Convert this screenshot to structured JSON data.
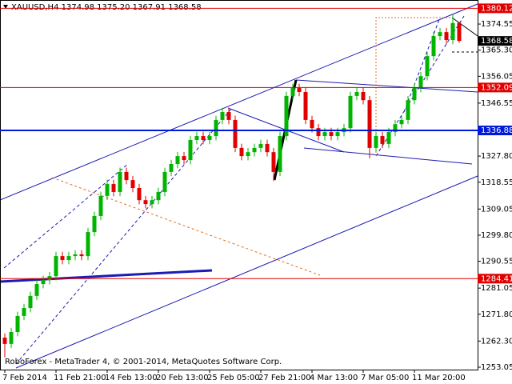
{
  "chart_data": {
    "type": "candlestick",
    "title": "XAUUSD,H4  1374.98 1375.20 1367.91 1368.58",
    "watermark": "RoboForex - MetaTrader 4, © 2001-2014, MetaQuotes Software Corp.",
    "categories": [
      "7 Feb 2014",
      null,
      null,
      null,
      null,
      null,
      null,
      null,
      "11 Feb 21:00",
      null,
      null,
      null,
      null,
      null,
      null,
      null,
      "14 Feb 13:00",
      null,
      null,
      null,
      null,
      null,
      null,
      null,
      "20 Feb 13:00",
      null,
      null,
      null,
      null,
      null,
      null,
      null,
      "25 Feb 05:00",
      null,
      null,
      null,
      null,
      null,
      null,
      null,
      "27 Feb 21:00",
      null,
      null,
      null,
      null,
      null,
      null,
      null,
      "4 Mar 13:00",
      null,
      null,
      null,
      null,
      null,
      null,
      null,
      "7 Mar 05:00",
      null,
      null,
      null,
      null,
      null,
      null,
      null,
      "11 Mar 20:00",
      null,
      null,
      null,
      null,
      null,
      null,
      null
    ],
    "open": [
      1263.5,
      1261.3,
      1265.5,
      1271.2,
      1274.0,
      1278.3,
      1282.5,
      1283.9,
      1285.3,
      1292.4,
      1291.0,
      1292.4,
      1293.0,
      1292.4,
      1300.9,
      1306.6,
      1313.7,
      1317.9,
      1315.1,
      1322.2,
      1319.3,
      1316.5,
      1312.2,
      1310.8,
      1312.2,
      1315.1,
      1322.2,
      1325.0,
      1327.8,
      1326.4,
      1333.5,
      1334.9,
      1333.5,
      1334.9,
      1340.6,
      1343.4,
      1340.6,
      1330.7,
      1327.8,
      1329.2,
      1330.7,
      1332.1,
      1329.2,
      1322.2,
      1334.9,
      1349.1,
      1351.9,
      1350.5,
      1340.6,
      1337.7,
      1334.9,
      1336.3,
      1334.9,
      1336.3,
      1337.7,
      1349.1,
      1350.5,
      1347.6,
      1330.7,
      1334.9,
      1332.1,
      1336.3,
      1339.1,
      1340.6,
      1347.6,
      1351.9,
      1356.1,
      1363.2,
      1370.3,
      1371.7,
      1368.9,
      1374.98
    ],
    "high": [
      1265.0,
      1267.0,
      1272.7,
      1275.5,
      1279.8,
      1284.0,
      1285.4,
      1286.8,
      1293.9,
      1293.9,
      1293.9,
      1294.5,
      1294.5,
      1302.4,
      1308.1,
      1315.2,
      1319.4,
      1319.4,
      1323.7,
      1323.7,
      1320.8,
      1318.0,
      1313.7,
      1313.7,
      1316.6,
      1323.7,
      1326.5,
      1329.3,
      1329.3,
      1335.0,
      1336.4,
      1336.4,
      1336.4,
      1342.1,
      1344.9,
      1344.9,
      1342.1,
      1332.2,
      1330.7,
      1332.2,
      1333.6,
      1333.6,
      1330.7,
      1336.4,
      1350.6,
      1353.4,
      1353.4,
      1352.0,
      1342.1,
      1339.2,
      1337.8,
      1337.8,
      1337.8,
      1339.2,
      1350.6,
      1352.0,
      1352.0,
      1349.1,
      1336.4,
      1336.4,
      1337.8,
      1340.6,
      1342.1,
      1349.1,
      1353.4,
      1357.6,
      1364.7,
      1371.8,
      1373.2,
      1373.2,
      1378.0,
      1375.2
    ],
    "low": [
      1256.5,
      1259.8,
      1264.0,
      1269.7,
      1272.5,
      1276.8,
      1281.0,
      1282.4,
      1283.8,
      1289.5,
      1289.5,
      1290.9,
      1290.9,
      1290.9,
      1299.4,
      1305.1,
      1312.2,
      1313.6,
      1313.6,
      1317.8,
      1315.0,
      1310.7,
      1309.3,
      1309.3,
      1310.7,
      1313.6,
      1320.7,
      1323.5,
      1324.9,
      1324.9,
      1332.0,
      1332.0,
      1332.0,
      1333.4,
      1339.1,
      1339.1,
      1329.2,
      1326.3,
      1326.3,
      1327.7,
      1329.2,
      1327.7,
      1319.0,
      1320.7,
      1333.4,
      1347.6,
      1349.0,
      1339.1,
      1336.2,
      1333.4,
      1333.4,
      1333.4,
      1333.4,
      1334.8,
      1336.2,
      1347.6,
      1346.1,
      1327.0,
      1329.2,
      1330.6,
      1330.6,
      1334.8,
      1337.6,
      1339.1,
      1346.1,
      1350.4,
      1354.6,
      1361.7,
      1368.8,
      1367.4,
      1367.4,
      1367.91
    ],
    "close": [
      1261.3,
      1265.5,
      1271.2,
      1274.0,
      1278.3,
      1282.5,
      1283.9,
      1285.3,
      1292.4,
      1291.0,
      1292.4,
      1293.0,
      1292.4,
      1300.9,
      1306.6,
      1313.7,
      1317.9,
      1315.1,
      1322.2,
      1319.3,
      1316.5,
      1312.2,
      1310.8,
      1312.2,
      1315.1,
      1322.2,
      1325.0,
      1327.8,
      1326.4,
      1333.5,
      1334.9,
      1333.5,
      1334.9,
      1340.6,
      1343.4,
      1340.6,
      1330.7,
      1327.8,
      1329.2,
      1330.7,
      1332.1,
      1329.2,
      1322.2,
      1334.9,
      1349.1,
      1351.9,
      1350.5,
      1340.6,
      1337.7,
      1334.9,
      1336.3,
      1334.9,
      1336.3,
      1337.7,
      1349.1,
      1350.5,
      1347.6,
      1330.7,
      1334.9,
      1332.1,
      1336.3,
      1339.1,
      1340.6,
      1347.6,
      1351.9,
      1356.1,
      1363.2,
      1370.3,
      1371.7,
      1368.9,
      1374.9,
      1368.58
    ],
    "bull_color": "#00b400",
    "bear_color": "#e00000",
    "ylim": [
      1252.2,
      1382.5
    ],
    "yticks": [
      1374.55,
      {
        "value": 1365.3,
        "label": "1365.30"
      },
      1356.05,
      1346.55,
      {
        "value": 1327.8,
        "label": "1327.80"
      },
      1318.55,
      1309.05,
      {
        "value": 1299.8,
        "label": "1299.80"
      },
      1290.55,
      1281.05,
      {
        "value": 1271.8,
        "label": "1271.80"
      },
      {
        "value": 1262.3,
        "label": "1262.30"
      },
      1253.05
    ],
    "levels": [
      {
        "value": 1380.12,
        "color": "#e00000",
        "line": true
      },
      {
        "value": 1368.58,
        "color": "#000000",
        "line": false
      },
      {
        "value": 1352.09,
        "color": "#e00000",
        "line": true
      },
      {
        "value": 1336.88,
        "color": "#0018d8",
        "line": true
      },
      {
        "value": 1284.41,
        "color": "#e00000",
        "line": true
      }
    ],
    "grid": false
  }
}
